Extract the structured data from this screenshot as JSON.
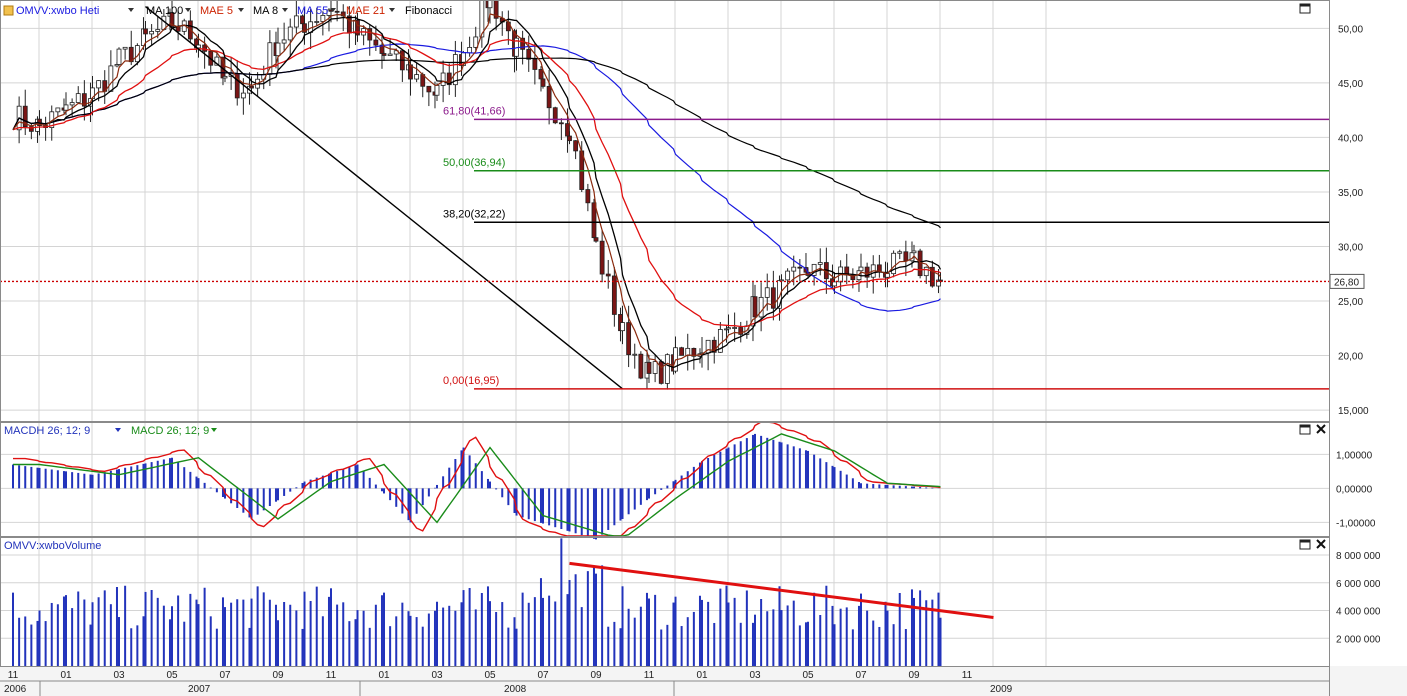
{
  "colors": {
    "background": "#ffffff",
    "grid": "#d4d4d4",
    "frame": "#8a8a8a",
    "candle_up": "#ffffff",
    "candle_down": "#7a1515",
    "ma100": "#000000",
    "mae5": "#8b2a0e",
    "ma8": "#000000",
    "ma55": "#1a1ae0",
    "mae21": "#e01010",
    "fib_618": "#8b1a8b",
    "fib_500": "#1a8c1a",
    "fib_382": "#000000",
    "fib_000": "#d01010",
    "last_price": "#cc0000",
    "macd_hist": "#2233bb",
    "macd_line": "#e01010",
    "macd_signal": "#1a8c1a",
    "volume_bar": "#2233bb",
    "trendline": "#e01010"
  },
  "legend": {
    "symbol": "OMVV:xwbo Heti",
    "items": [
      {
        "label": "MA 100",
        "color": "#000000"
      },
      {
        "label": "MAE 5",
        "color": "#cc2200"
      },
      {
        "label": "MA 8",
        "color": "#000000"
      },
      {
        "label": "MA 55",
        "color": "#1a1ae0"
      },
      {
        "label": "MAE 21",
        "color": "#cc2200"
      }
    ],
    "fibonacci": "Fibonacci"
  },
  "macd_legend": {
    "items": [
      {
        "label": "MACDH 26; 12; 9",
        "color": "#2233bb"
      },
      {
        "label": "MACD 26; 12; 9",
        "color": "#1a8c1a"
      }
    ]
  },
  "volume_legend": "OMVV:xwboVolume",
  "icons": {
    "maximize": "window-maximize-icon",
    "close": "close-icon",
    "dropdown": "triangle-down-icon",
    "symbol": "chart-symbol-icon"
  },
  "chart_data": [
    {
      "type": "candlestick",
      "period": "weekly",
      "x_range": [
        "2006-11",
        "2009-01"
      ],
      "y_axis": {
        "ticks": [
          "15,000",
          "20,00",
          "25,00",
          "30,00",
          "35,00",
          "40,00",
          "45,00",
          "50,00"
        ],
        "ylim": [
          14.0,
          52.6
        ]
      },
      "last_price": "26,80",
      "last_price_value": 26.8,
      "close_approx": [
        {
          "date": "2006-11",
          "close": 42.0
        },
        {
          "date": "2006-12",
          "close": 41.0
        },
        {
          "date": "2007-01",
          "close": 42.5
        },
        {
          "date": "2007-02",
          "close": 44.0
        },
        {
          "date": "2007-03",
          "close": 47.0
        },
        {
          "date": "2007-04",
          "close": 49.0
        },
        {
          "date": "2007-05",
          "close": 50.5
        },
        {
          "date": "2007-06",
          "close": 49.0
        },
        {
          "date": "2007-07",
          "close": 45.0
        },
        {
          "date": "2007-08",
          "close": 44.5
        },
        {
          "date": "2007-09",
          "close": 49.0
        },
        {
          "date": "2007-10",
          "close": 50.5
        },
        {
          "date": "2007-11",
          "close": 52.0
        },
        {
          "date": "2007-12",
          "close": 49.5
        },
        {
          "date": "2008-01",
          "close": 47.5
        },
        {
          "date": "2008-02",
          "close": 46.0
        },
        {
          "date": "2008-03",
          "close": 44.0
        },
        {
          "date": "2008-04",
          "close": 48.0
        },
        {
          "date": "2008-05",
          "close": 53.0
        },
        {
          "date": "2008-06",
          "close": 48.0
        },
        {
          "date": "2008-07",
          "close": 44.0
        },
        {
          "date": "2008-08",
          "close": 41.0
        },
        {
          "date": "2008-09",
          "close": 30.0
        },
        {
          "date": "2008-10",
          "close": 22.0
        },
        {
          "date": "2008-11",
          "close": 18.0
        },
        {
          "date": "2008-12",
          "close": 19.5
        },
        {
          "date": "2009-01",
          "close": 21.0
        },
        {
          "date": "2009-02",
          "close": 22.0
        },
        {
          "date": "2009-03",
          "close": 24.5
        },
        {
          "date": "2009-04",
          "close": 26.0
        },
        {
          "date": "2009-05",
          "close": 28.0
        },
        {
          "date": "2009-06",
          "close": 27.0
        },
        {
          "date": "2009-07",
          "close": 27.5
        },
        {
          "date": "2009-08",
          "close": 28.0
        },
        {
          "date": "2009-09",
          "close": 28.5
        },
        {
          "date": "2009-10",
          "close": 26.8
        }
      ],
      "fibonacci_levels": [
        {
          "label": "61,80(41,66)",
          "value": 41.66,
          "color": "#8b1a8b"
        },
        {
          "label": "50,00(36,94)",
          "value": 36.94,
          "color": "#1a8c1a"
        },
        {
          "label": "38,20(32,22)",
          "value": 32.22,
          "color": "#000000"
        },
        {
          "label": "0,00(16,95)",
          "value": 16.95,
          "color": "#d01010"
        }
      ],
      "trendlines_price": [
        {
          "from": [
            "2007-04",
            52.0
          ],
          "to": [
            "2008-10",
            16.95
          ]
        }
      ]
    },
    {
      "type": "bar+line",
      "name": "MACD",
      "y_axis": {
        "ticks": [
          "1,00000",
          "0,00000",
          "-1,00000"
        ],
        "ylim": [
          -1.4,
          1.95
        ]
      },
      "histogram_shape": [
        {
          "date": "2006-11",
          "value": 0.7
        },
        {
          "date": "2007-02",
          "value": 0.4
        },
        {
          "date": "2007-05",
          "value": 0.9
        },
        {
          "date": "2007-08",
          "value": -0.9
        },
        {
          "date": "2007-10",
          "value": 0.2
        },
        {
          "date": "2007-12",
          "value": 0.7
        },
        {
          "date": "2008-02",
          "value": -1.0
        },
        {
          "date": "2008-04",
          "value": 1.2
        },
        {
          "date": "2008-06",
          "value": -0.8
        },
        {
          "date": "2008-09",
          "value": -1.5
        },
        {
          "date": "2008-11",
          "value": -0.3
        },
        {
          "date": "2009-01",
          "value": 0.8
        },
        {
          "date": "2009-03",
          "value": 1.6
        },
        {
          "date": "2009-05",
          "value": 1.1
        },
        {
          "date": "2009-07",
          "value": 0.15
        },
        {
          "date": "2009-10",
          "value": 0.0
        }
      ]
    },
    {
      "type": "bar",
      "name": "Volume",
      "y_axis": {
        "ticks": [
          "2 000 000",
          "4 000 000",
          "6 000 000",
          "8 000 000"
        ],
        "ylim": [
          0,
          9300000
        ]
      },
      "trendline": {
        "from": [
          "2008-08",
          7400000
        ],
        "to": [
          "2009-12",
          3500000
        ]
      }
    }
  ],
  "x_axis": {
    "month_labels": [
      "11",
      "01",
      "03",
      "05",
      "07",
      "09",
      "11",
      "01",
      "03",
      "05",
      "07",
      "09",
      "11",
      "01",
      "03",
      "05",
      "07",
      "09",
      "11"
    ],
    "year_labels": [
      "2006",
      "2007",
      "2008",
      "2009"
    ]
  }
}
